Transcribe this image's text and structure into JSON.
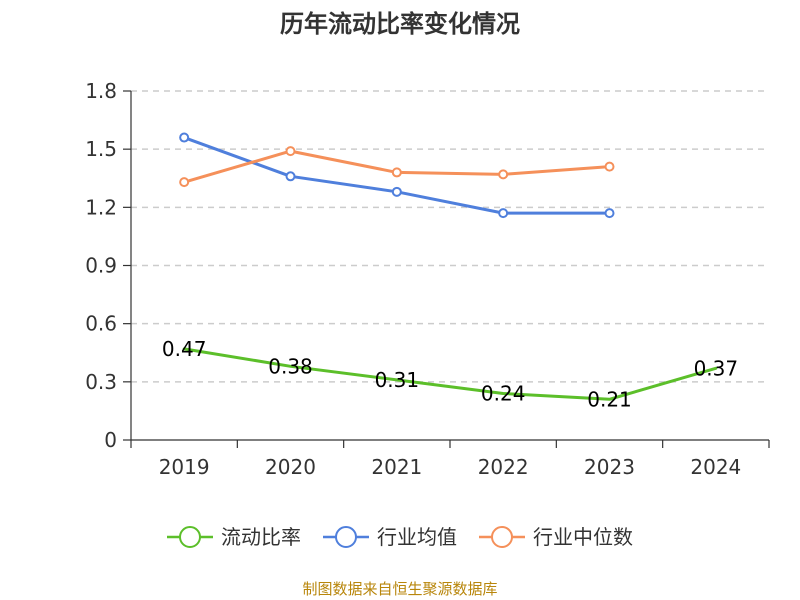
{
  "chart_data": {
    "type": "line",
    "title": "历年流动比率变化情况",
    "categories": [
      "2019",
      "2020",
      "2021",
      "2022",
      "2023",
      "2024"
    ],
    "ylim": [
      0,
      1.8
    ],
    "yticks": [
      0,
      0.3,
      0.6,
      0.9,
      1.2,
      1.5,
      1.8
    ],
    "ytick_labels": [
      "0",
      "0.3",
      "0.6",
      "0.9",
      "1.2",
      "1.5",
      "1.8"
    ],
    "grid": true,
    "legend_position": "bottom",
    "series": [
      {
        "name": "流动比率",
        "color": "#5cbf2a",
        "values": [
          0.47,
          0.38,
          0.31,
          0.24,
          0.21,
          0.37
        ],
        "labels": [
          "0.47",
          "0.38",
          "0.31",
          "0.24",
          "0.21",
          "0.37"
        ],
        "show_labels": true,
        "show_markers": false
      },
      {
        "name": "行业均值",
        "color": "#4f7fdc",
        "values": [
          1.56,
          1.36,
          1.28,
          1.17,
          1.17,
          null
        ],
        "show_labels": false,
        "show_markers": true
      },
      {
        "name": "行业中位数",
        "color": "#f5905a",
        "values": [
          1.33,
          1.49,
          1.38,
          1.37,
          1.41,
          null
        ],
        "show_labels": false,
        "show_markers": true
      }
    ],
    "source": "制图数据来自恒生聚源数据库"
  }
}
